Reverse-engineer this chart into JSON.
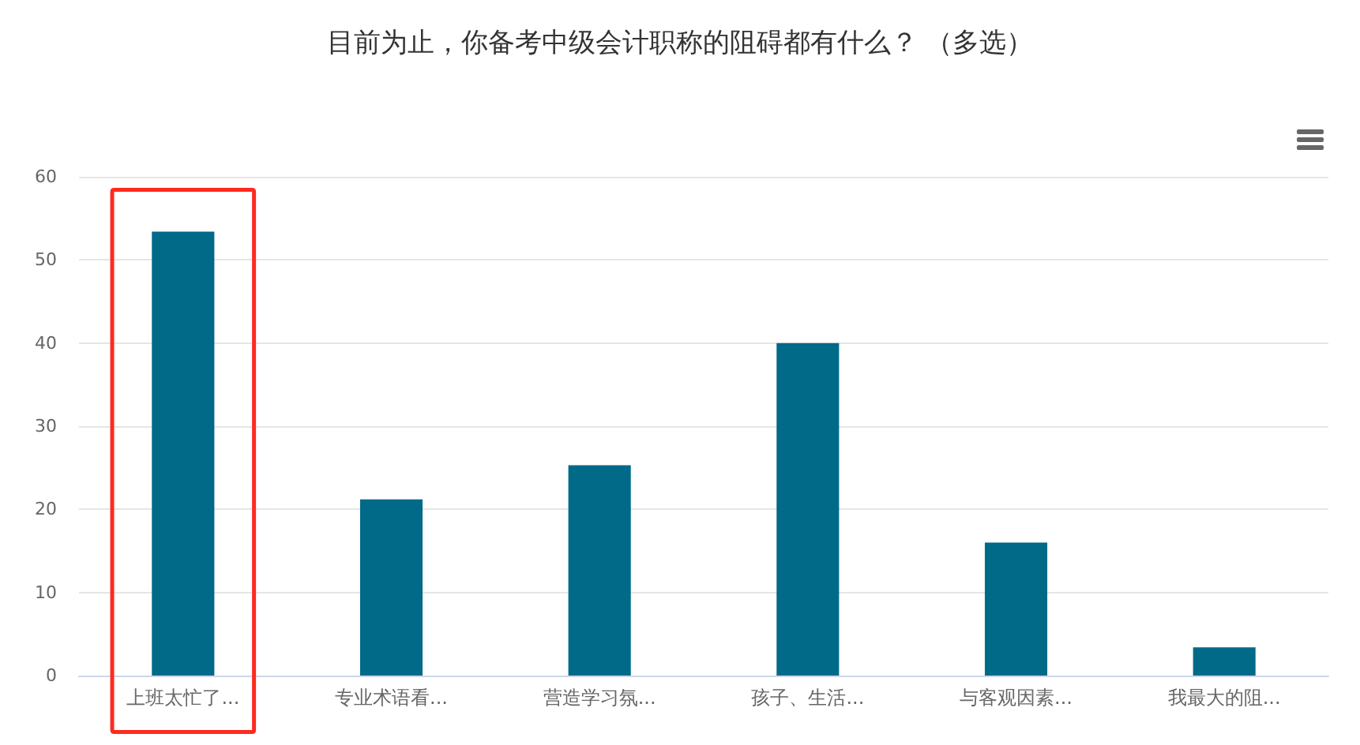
{
  "chart_data": {
    "type": "bar",
    "title": "目前为止，你备考中级会计职称的阻碍都有什么？ （多选）",
    "categories": [
      "上班太忙了...",
      "专业术语看...",
      "营造学习氛...",
      "孩子、生活...",
      "与客观因素...",
      "我最大的阻..."
    ],
    "values": [
      53.4,
      21.2,
      25.3,
      40,
      16,
      3.4
    ],
    "color": "#016a88",
    "ylim": [
      0,
      60
    ],
    "yticks": [
      0,
      10,
      20,
      30,
      40,
      50,
      60
    ],
    "grid": "y"
  }
}
